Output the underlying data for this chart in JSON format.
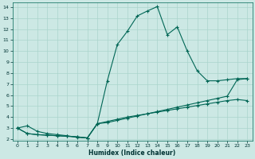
{
  "xlabel": "Humidex (Indice chaleur)",
  "bg_color": "#cce8e4",
  "grid_color": "#aad4cc",
  "line_color": "#006655",
  "xlim": [
    -0.5,
    23.5
  ],
  "ylim": [
    1.85,
    14.4
  ],
  "xticks": [
    0,
    1,
    2,
    3,
    4,
    5,
    6,
    7,
    8,
    9,
    10,
    11,
    12,
    13,
    14,
    15,
    16,
    17,
    18,
    19,
    20,
    21,
    22,
    23
  ],
  "yticks": [
    2,
    3,
    4,
    5,
    6,
    7,
    8,
    9,
    10,
    11,
    12,
    13,
    14
  ],
  "c1_x": [
    0,
    1,
    2,
    3,
    4,
    5,
    6,
    7,
    8,
    9,
    10,
    11,
    12,
    13,
    14,
    15,
    16,
    17,
    18,
    19,
    20,
    21,
    22,
    23
  ],
  "c1_y": [
    3.0,
    3.2,
    2.7,
    2.5,
    2.4,
    2.3,
    2.15,
    2.1,
    3.4,
    7.3,
    10.6,
    11.8,
    13.2,
    13.65,
    14.05,
    11.5,
    12.2,
    10.0,
    8.2,
    7.3,
    7.3,
    7.4,
    7.5,
    7.5
  ],
  "c2_x": [
    0,
    1,
    2,
    3,
    4,
    5,
    6,
    7,
    8,
    9,
    10,
    11,
    12,
    13,
    14,
    15,
    16,
    17,
    18,
    19,
    20,
    21,
    22,
    23
  ],
  "c2_y": [
    3.0,
    2.5,
    2.4,
    2.35,
    2.3,
    2.25,
    2.2,
    2.1,
    3.4,
    3.5,
    3.7,
    3.9,
    4.1,
    4.3,
    4.5,
    4.7,
    4.9,
    5.1,
    5.3,
    5.5,
    5.7,
    5.9,
    7.4,
    7.5
  ],
  "c3_x": [
    0,
    1,
    2,
    3,
    4,
    5,
    6,
    7,
    8,
    9,
    10,
    11,
    12,
    13,
    14,
    15,
    16,
    17,
    18,
    19,
    20,
    21,
    22,
    23
  ],
  "c3_y": [
    3.0,
    2.5,
    2.4,
    2.35,
    2.3,
    2.25,
    2.2,
    2.1,
    3.4,
    3.6,
    3.8,
    4.0,
    4.15,
    4.3,
    4.45,
    4.6,
    4.75,
    4.9,
    5.05,
    5.2,
    5.35,
    5.5,
    5.6,
    5.5
  ]
}
